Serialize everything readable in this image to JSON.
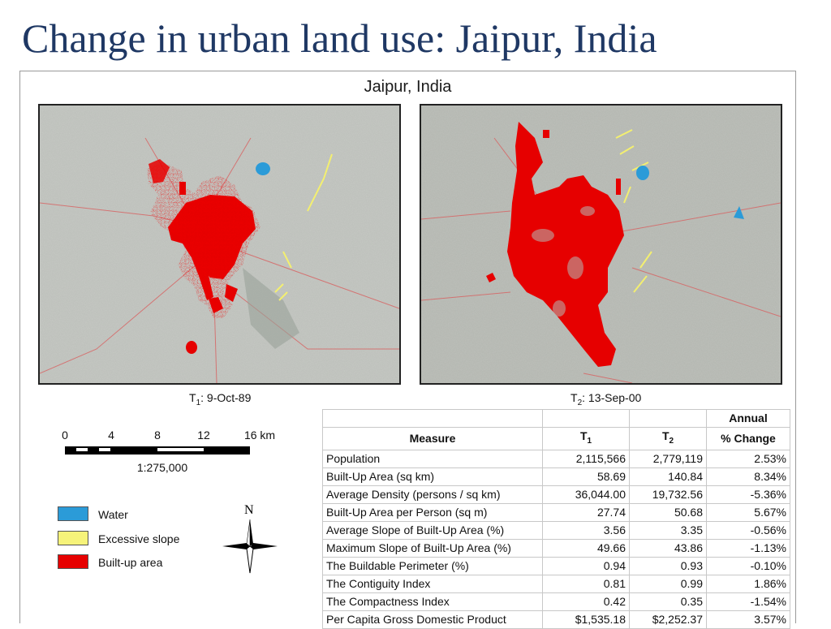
{
  "slide": {
    "title": "Change in urban land use: Jaipur, India"
  },
  "figure": {
    "title": "Jaipur, India",
    "map_left": {
      "caption_prefix": "T",
      "caption_sub": "1",
      "caption_date": ":  9-Oct-89"
    },
    "map_right": {
      "caption_prefix": "T",
      "caption_sub": "2",
      "caption_date": ":  13-Sep-00"
    },
    "scale": {
      "labels": [
        "0",
        "4",
        "8",
        "12",
        "16 km"
      ],
      "ratio": "1:275,000"
    },
    "legend": [
      {
        "label": "Water",
        "color": "#2b9bd8"
      },
      {
        "label": "Excessive slope",
        "color": "#f6f37a"
      },
      {
        "label": "Built-up area",
        "color": "#e60000"
      }
    ],
    "north_label": "N"
  },
  "table": {
    "header_annual": "Annual",
    "header_measure": "Measure",
    "header_t1_prefix": "T",
    "header_t1_sub": "1",
    "header_t2_prefix": "T",
    "header_t2_sub": "2",
    "header_change": "% Change",
    "rows": [
      {
        "measure": "Population",
        "t1": "2,115,566",
        "t2": "2,779,119",
        "change": "2.53%"
      },
      {
        "measure": "Built-Up Area (sq km)",
        "t1": "58.69",
        "t2": "140.84",
        "change": "8.34%"
      },
      {
        "measure": "Average Density (persons / sq km)",
        "t1": "36,044.00",
        "t2": "19,732.56",
        "change": "-5.36%"
      },
      {
        "measure": "Built-Up Area per Person (sq m)",
        "t1": "27.74",
        "t2": "50.68",
        "change": "5.67%"
      },
      {
        "measure": "Average Slope of Built-Up Area (%)",
        "t1": "3.56",
        "t2": "3.35",
        "change": "-0.56%"
      },
      {
        "measure": "Maximum Slope of Built-Up Area (%)",
        "t1": "49.66",
        "t2": "43.86",
        "change": "-1.13%"
      },
      {
        "measure": "The Buildable Perimeter (%)",
        "t1": "0.94",
        "t2": "0.93",
        "change": "-0.10%"
      },
      {
        "measure": "The Contiguity Index",
        "t1": "0.81",
        "t2": "0.99",
        "change": "1.86%"
      },
      {
        "measure": "The Compactness Index",
        "t1": "0.42",
        "t2": "0.35",
        "change": "-1.54%"
      },
      {
        "measure": "Per Capita Gross Domestic Product",
        "t1": "$1,535.18",
        "t2": "$2,252.37",
        "change": "3.57%"
      }
    ]
  }
}
